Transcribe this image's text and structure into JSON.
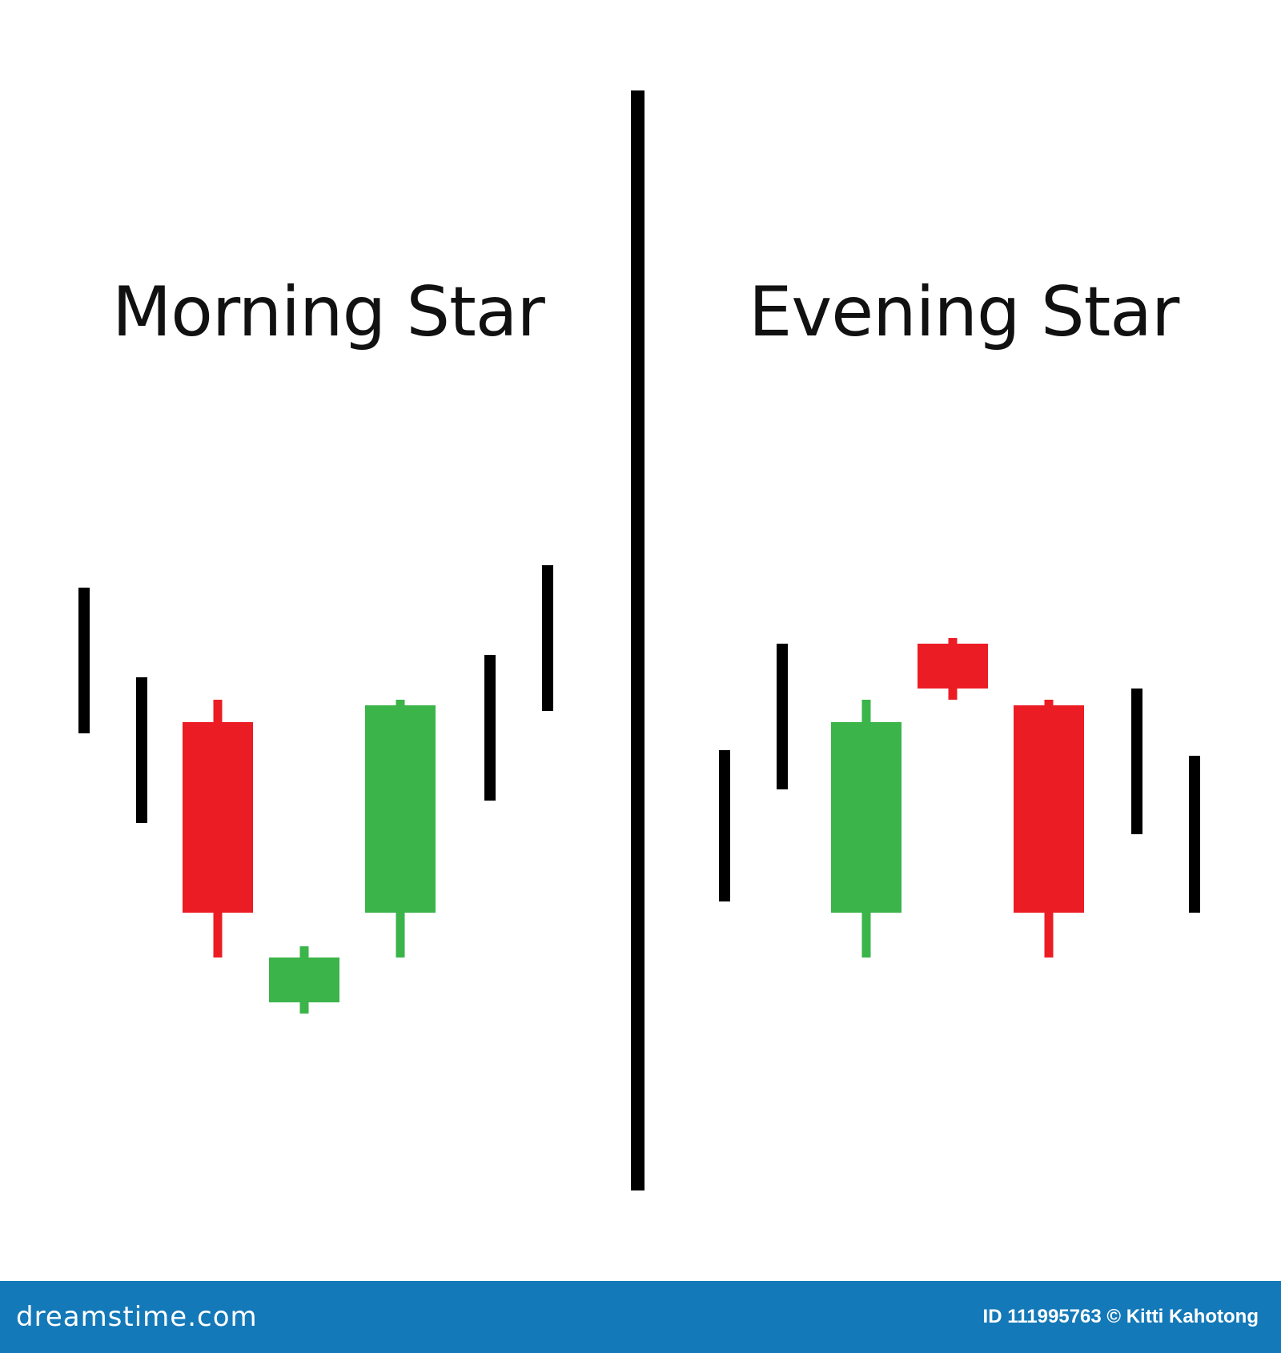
{
  "panels": {
    "left_title": "Morning Star",
    "right_title": "Evening Star"
  },
  "colors": {
    "bullish": "#3bb44a",
    "bearish": "#ec1c24",
    "trend_line": "#000000",
    "divider": "#000000",
    "footer_background": "#1479b8",
    "footer_text": "#ffffff"
  },
  "footer": {
    "brand": "dreamstime.com",
    "credit": "ID 111995763 © Kitti Kahotong"
  },
  "chart_data": [
    {
      "type": "candlestick",
      "title": "Morning Star",
      "xlabel": "",
      "ylabel": "",
      "price_axis_shown": false,
      "candles": [
        {
          "kind": "trend",
          "high": 8.8,
          "low": 6.2
        },
        {
          "kind": "trend",
          "high": 7.2,
          "low": 4.6
        },
        {
          "kind": "bearish",
          "open": 6.4,
          "close": 3.0,
          "high": 6.8,
          "low": 2.2
        },
        {
          "kind": "bullish",
          "open": 1.4,
          "close": 2.2,
          "high": 2.4,
          "low": 1.2
        },
        {
          "kind": "bullish",
          "open": 3.0,
          "close": 6.7,
          "high": 6.8,
          "low": 2.2
        },
        {
          "kind": "trend",
          "high": 7.6,
          "low": 5.0
        },
        {
          "kind": "trend",
          "high": 9.2,
          "low": 6.6
        }
      ]
    },
    {
      "type": "candlestick",
      "title": "Evening Star",
      "xlabel": "",
      "ylabel": "",
      "price_axis_shown": false,
      "candles": [
        {
          "kind": "trend",
          "high": 5.9,
          "low": 3.2
        },
        {
          "kind": "trend",
          "high": 7.8,
          "low": 5.2
        },
        {
          "kind": "bullish",
          "open": 3.0,
          "close": 6.4,
          "high": 6.8,
          "low": 2.2
        },
        {
          "kind": "bearish",
          "open": 7.8,
          "close": 7.0,
          "high": 7.9,
          "low": 6.8
        },
        {
          "kind": "bearish",
          "open": 6.7,
          "close": 3.0,
          "high": 6.8,
          "low": 2.2
        },
        {
          "kind": "trend",
          "high": 7.0,
          "low": 4.4
        },
        {
          "kind": "trend",
          "high": 5.8,
          "low": 3.0
        }
      ]
    }
  ]
}
